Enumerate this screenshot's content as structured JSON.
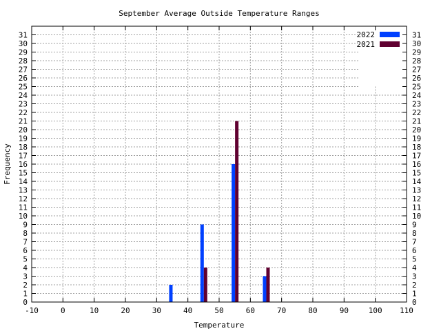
{
  "chart_data": {
    "type": "bar",
    "title": "September Average Outside Temperature Ranges",
    "xlabel": "Temperature",
    "ylabel": "Frequency",
    "xlim": [
      -10,
      110
    ],
    "ylim": [
      0,
      32
    ],
    "x_ticks": [
      -10,
      0,
      10,
      20,
      30,
      40,
      50,
      60,
      70,
      80,
      90,
      100,
      110
    ],
    "y_ticks": [
      0,
      1,
      2,
      3,
      4,
      5,
      6,
      7,
      8,
      9,
      10,
      11,
      12,
      13,
      14,
      15,
      16,
      17,
      18,
      19,
      20,
      21,
      22,
      23,
      24,
      25,
      26,
      27,
      28,
      29,
      30,
      31
    ],
    "grid": true,
    "legend_position": "top-right",
    "bin_centers": [
      0,
      10,
      20,
      30,
      40,
      50,
      60,
      70,
      80,
      90,
      100
    ],
    "series": [
      {
        "name": "2022",
        "color": "#0040ff",
        "values": [
          0,
          0,
          0,
          0,
          2,
          9,
          16,
          3,
          0,
          0,
          0
        ]
      },
      {
        "name": "2021",
        "color": "#600030",
        "values": [
          0,
          0,
          0,
          0,
          0,
          4,
          21,
          4,
          0,
          0,
          0
        ]
      }
    ]
  }
}
